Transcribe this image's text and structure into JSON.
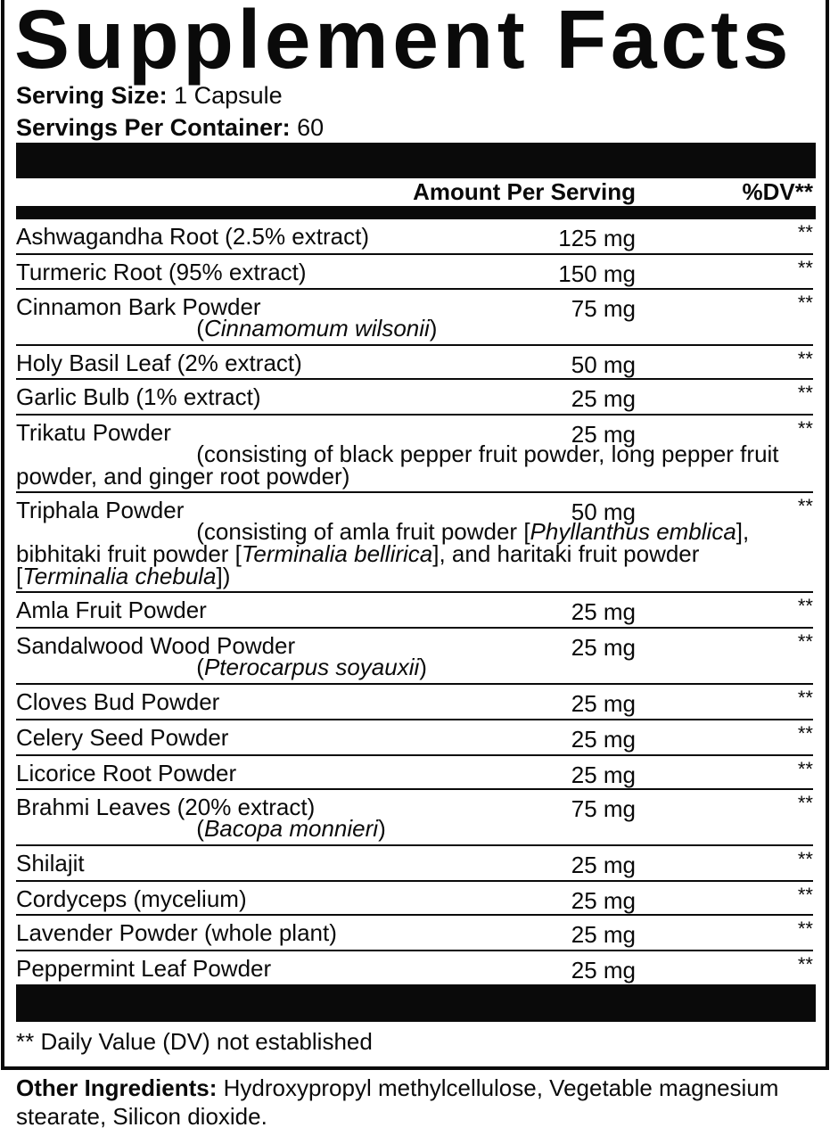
{
  "title": "Supplement Facts",
  "serving_size": {
    "label": "Serving Size:",
    "value": " 1 Capsule"
  },
  "servings_per_container": {
    "label": "Servings Per Container:",
    "value": " 60"
  },
  "header": {
    "amount": "Amount Per Serving",
    "dv": "%DV**"
  },
  "ingredients": [
    {
      "name": "Ashwagandha Root (2.5% extract)",
      "amount": "125 mg",
      "dv": "**"
    },
    {
      "name": "Turmeric Root (95% extract)",
      "amount": "150 mg",
      "dv": "**"
    },
    {
      "name": "Cinnamon Bark Powder",
      "amount": "75 mg",
      "dv": "**",
      "sub": [
        {
          "t": "                            ("
        },
        {
          "t": "Cinnamomum wilsonii",
          "i": true
        },
        {
          "t": ")"
        }
      ]
    },
    {
      "name": "Holy Basil Leaf (2% extract)",
      "amount": "50 mg",
      "dv": "**"
    },
    {
      "name": "Garlic Bulb (1% extract)",
      "amount": "25 mg",
      "dv": "**"
    },
    {
      "name": "Trikatu Powder",
      "amount": "25 mg",
      "dv": "**",
      "sub": [
        {
          "t": "                            (consisting of black pepper fruit powder, long pepper fruit powder, and ginger root powder)"
        }
      ]
    },
    {
      "name": "Triphala Powder",
      "amount": "50 mg",
      "dv": "**",
      "sub": [
        {
          "t": "                            (consisting of amla fruit powder ["
        },
        {
          "t": "Phyllanthus emblica",
          "i": true
        },
        {
          "t": "], bibhitaki fruit powder ["
        },
        {
          "t": "Terminalia bellirica",
          "i": true
        },
        {
          "t": "], and haritaki fruit powder ["
        },
        {
          "t": "Terminalia chebula",
          "i": true
        },
        {
          "t": "])"
        }
      ]
    },
    {
      "name": "Amla Fruit Powder",
      "amount": "25 mg",
      "dv": "**"
    },
    {
      "name": "Sandalwood Wood Powder",
      "amount": "25 mg",
      "dv": "**",
      "sub": [
        {
          "t": "                            ("
        },
        {
          "t": "Pterocarpus soyauxii",
          "i": true
        },
        {
          "t": ")"
        }
      ]
    },
    {
      "name": "Cloves Bud Powder",
      "amount": "25 mg",
      "dv": "**"
    },
    {
      "name": "Celery Seed Powder",
      "amount": "25 mg",
      "dv": "**"
    },
    {
      "name": "Licorice Root Powder",
      "amount": "25 mg",
      "dv": "**"
    },
    {
      "name": "Brahmi Leaves (20% extract)",
      "amount": "75 mg",
      "dv": "**",
      "sub": [
        {
          "t": "                            ("
        },
        {
          "t": "Bacopa monnieri",
          "i": true
        },
        {
          "t": ")"
        }
      ]
    },
    {
      "name": "Shilajit",
      "amount": "25 mg",
      "dv": "**"
    },
    {
      "name": "Cordyceps (mycelium)",
      "amount": "25 mg",
      "dv": "**"
    },
    {
      "name": "Lavender Powder (whole plant)",
      "amount": "25 mg",
      "dv": "**"
    },
    {
      "name": "Peppermint Leaf Powder",
      "amount": "25 mg",
      "dv": "**"
    }
  ],
  "footnote": "** Daily Value (DV) not established",
  "other_ingredients": {
    "label": "Other Ingredients:",
    "value": " Hydroxypropyl methylcellulose, Vegetable magnesium stearate, Silicon dioxide."
  }
}
